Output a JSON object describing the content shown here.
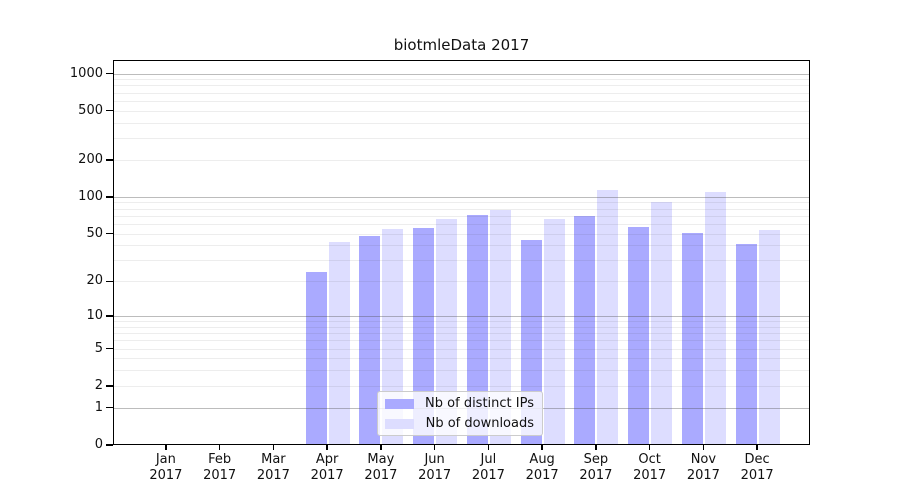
{
  "title": "biotmleData 2017",
  "chart_data": {
    "type": "bar",
    "title": "biotmleData 2017",
    "categories": [
      "Jan",
      "Feb",
      "Mar",
      "Apr",
      "May",
      "Jun",
      "Jul",
      "Aug",
      "Sep",
      "Oct",
      "Nov",
      "Dec"
    ],
    "x_year_label": "2017",
    "series": [
      {
        "name": "Nb of distinct IPs",
        "color": "#aaaaff",
        "values": [
          0,
          0,
          0,
          24,
          48,
          56,
          71,
          44,
          70,
          57,
          51,
          41
        ]
      },
      {
        "name": "Nb of downloads",
        "color": "#ddddff",
        "values": [
          0,
          0,
          0,
          43,
          55,
          66,
          78,
          66,
          114,
          90,
          110,
          54
        ]
      }
    ],
    "yscale": "log1p",
    "yticks": [
      0,
      1,
      2,
      5,
      10,
      20,
      50,
      100,
      200,
      500,
      1000
    ],
    "grid_minor_ticks": [
      2,
      3,
      4,
      5,
      6,
      7,
      8,
      9,
      20,
      30,
      40,
      50,
      60,
      70,
      80,
      90,
      200,
      300,
      400,
      500,
      600,
      700,
      800,
      900
    ],
    "grid_major_ticks": [
      1,
      10,
      100,
      1000
    ],
    "ylim": [
      0,
      1165
    ],
    "grid": true,
    "legend_position": "lower-center"
  },
  "colors": {
    "bar_distinct_ips": "#aaaaff",
    "bar_downloads": "#ddddff",
    "axis": "#000000",
    "text": "#111111",
    "grid_minor": "#ebebeb",
    "grid_major": "#c4c4c4",
    "legend_border": "#cccccc",
    "background": "#ffffff"
  }
}
